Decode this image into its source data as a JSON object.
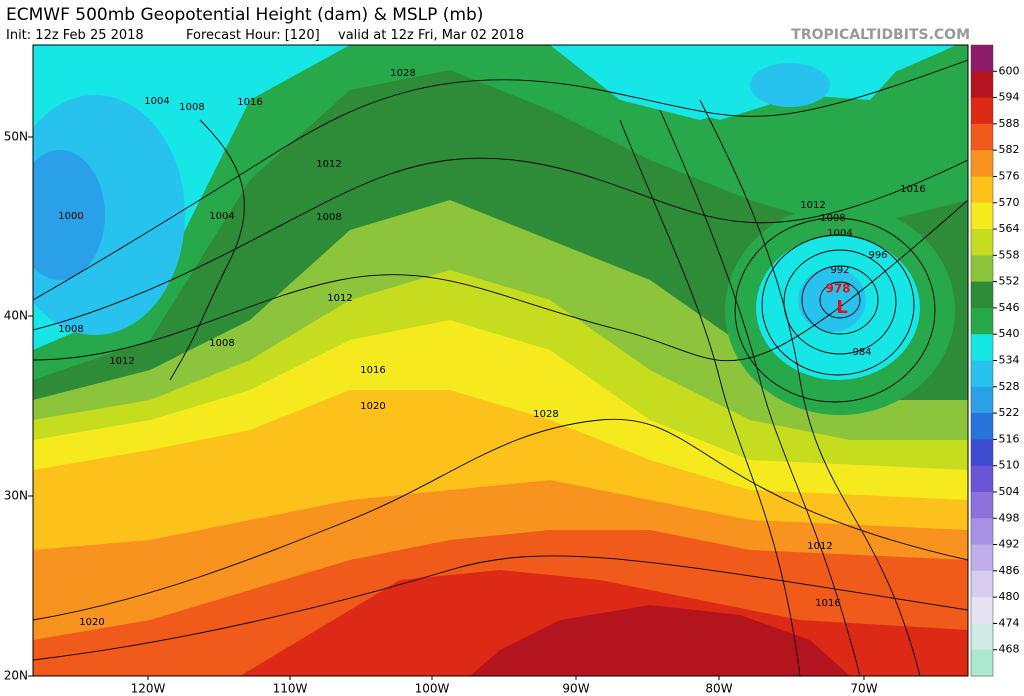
{
  "header": {
    "title": "ECMWF 500mb Geopotential Height (dam) & MSLP (mb)",
    "init": "Init: 12z Feb 25 2018",
    "forecast_hour": "Forecast Hour: [120]",
    "valid": "valid at 12z Fri, Mar 02 2018",
    "watermark": "TROPICALTIDBITS.COM"
  },
  "map": {
    "lat_labels": [
      "50N",
      "40N",
      "30N",
      "20N"
    ],
    "lon_labels": [
      "120W",
      "110W",
      "100W",
      "90W",
      "80W",
      "70W"
    ],
    "isobar_labels": [
      "1028",
      "1004",
      "1008",
      "1016",
      "1012",
      "1004",
      "1008",
      "1000",
      "1008",
      "1012",
      "1008",
      "1012",
      "1016",
      "1020",
      "1028",
      "1020",
      "1012",
      "1016",
      "1016",
      "1012",
      "1008",
      "1004",
      "996",
      "992",
      "984"
    ],
    "low": {
      "pressure": "978",
      "label": "L"
    }
  },
  "colorbar": {
    "levels": [
      600,
      594,
      588,
      582,
      576,
      570,
      564,
      558,
      552,
      546,
      540,
      534,
      528,
      522,
      516,
      510,
      504,
      498,
      492,
      486,
      480,
      474,
      468
    ],
    "colors": [
      "#8e1a6b",
      "#b3141d",
      "#dc2a16",
      "#f05a1a",
      "#f7931e",
      "#fcc21b",
      "#f5ea1e",
      "#c6dc1e",
      "#8cc43b",
      "#2e8b37",
      "#27a84a",
      "#17e6e6",
      "#27c3ee",
      "#2aa0e8",
      "#2872dc",
      "#3c4bd0",
      "#6a55d6",
      "#8d72dc",
      "#a890e4",
      "#c2aeea",
      "#d8cdf0",
      "#e6e4f4",
      "#cfece4",
      "#aee8cf"
    ]
  }
}
